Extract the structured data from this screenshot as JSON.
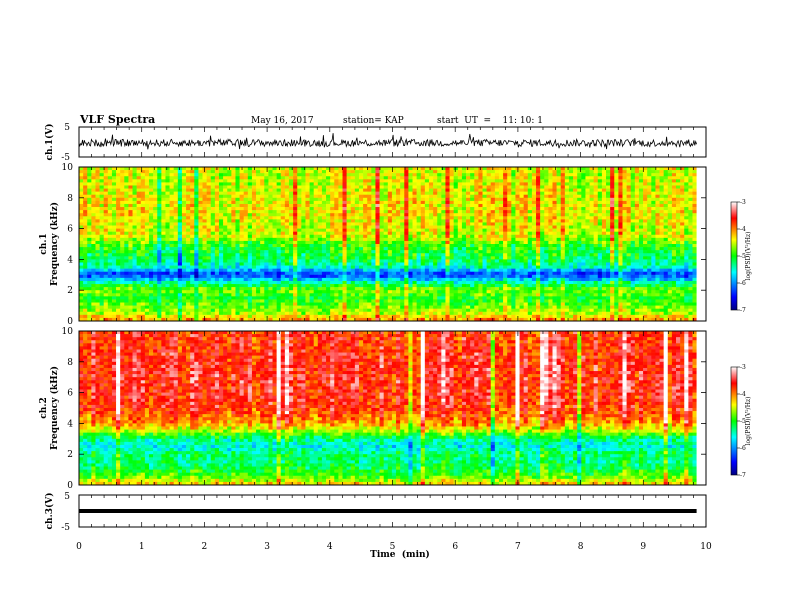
{
  "header": {
    "title": "VLF Spectra",
    "date": "May 16, 2017",
    "station": "station= KAP",
    "start": "start  UT  =    11: 10: 1"
  },
  "chart_data": [
    {
      "type": "line",
      "panel": "ch1-waveform",
      "ylabel": "ch.1(V)",
      "ylim": [
        -5,
        5
      ],
      "yticks": [
        "5",
        "-5"
      ],
      "xlim": [
        0,
        10
      ],
      "data_xlim": [
        0,
        9.85
      ],
      "description_values": {
        "baseline": -0.3,
        "amplitude": 3
      }
    },
    {
      "type": "heatmap",
      "panel": "ch1-spectrogram",
      "ylabel": "ch.1\nFrequency  (kHz)",
      "ylabel_lines": [
        "ch.1",
        "Frequency  (kHz)"
      ],
      "ylim": [
        0,
        10
      ],
      "yticks": [
        "0",
        "2",
        "4",
        "6",
        "8",
        "10"
      ],
      "xlim": [
        0,
        10
      ],
      "data_xlim": [
        0,
        9.85
      ],
      "colorbar": {
        "label": "log(PSD)(V²/Hz)",
        "ticks": [
          "-3",
          "-4",
          "-5",
          "-6",
          "-7"
        ],
        "range": [
          -7,
          -3
        ]
      },
      "band_profile": [
        {
          "f": 0.0,
          "v": -4.0
        },
        {
          "f": 0.5,
          "v": -4.6
        },
        {
          "f": 1.0,
          "v": -4.8
        },
        {
          "f": 1.5,
          "v": -5.0
        },
        {
          "f": 2.0,
          "v": -4.7
        },
        {
          "f": 2.5,
          "v": -5.4
        },
        {
          "f": 3.0,
          "v": -6.4
        },
        {
          "f": 3.5,
          "v": -5.5
        },
        {
          "f": 4.0,
          "v": -5.2
        },
        {
          "f": 4.5,
          "v": -5.1
        },
        {
          "f": 5.0,
          "v": -4.9
        },
        {
          "f": 5.5,
          "v": -4.5
        },
        {
          "f": 6.0,
          "v": -4.5
        },
        {
          "f": 7.0,
          "v": -4.4
        },
        {
          "f": 8.0,
          "v": -4.4
        },
        {
          "f": 9.0,
          "v": -4.5
        },
        {
          "f": 10.0,
          "v": -4.5
        }
      ]
    },
    {
      "type": "heatmap",
      "panel": "ch2-spectrogram",
      "ylabel": "ch.2\nFrequency  (kHz)",
      "ylabel_lines": [
        "ch.2",
        "Frequency  (kHz)"
      ],
      "ylim": [
        0,
        10
      ],
      "yticks": [
        "0",
        "2",
        "4",
        "6",
        "8",
        "10"
      ],
      "xlim": [
        0,
        10
      ],
      "data_xlim": [
        0,
        9.85
      ],
      "colorbar": {
        "label": "log(PSD)(V²/Hz)",
        "ticks": [
          "-3",
          "-4",
          "-5",
          "-6",
          "-7"
        ],
        "range": [
          -7,
          -3
        ]
      },
      "band_profile": [
        {
          "f": 0.0,
          "v": -4.2
        },
        {
          "f": 0.5,
          "v": -4.8
        },
        {
          "f": 1.0,
          "v": -5.1
        },
        {
          "f": 1.5,
          "v": -5.3
        },
        {
          "f": 2.0,
          "v": -5.2
        },
        {
          "f": 2.5,
          "v": -5.6
        },
        {
          "f": 3.0,
          "v": -5.3
        },
        {
          "f": 3.5,
          "v": -4.6
        },
        {
          "f": 4.0,
          "v": -4.1
        },
        {
          "f": 4.5,
          "v": -3.9
        },
        {
          "f": 5.0,
          "v": -3.7
        },
        {
          "f": 6.0,
          "v": -3.6
        },
        {
          "f": 7.0,
          "v": -3.6
        },
        {
          "f": 8.0,
          "v": -3.6
        },
        {
          "f": 9.0,
          "v": -3.7
        },
        {
          "f": 10.0,
          "v": -3.7
        }
      ]
    },
    {
      "type": "line",
      "panel": "ch3-waveform",
      "ylabel": "ch.3(V)",
      "ylim": [
        -5,
        5
      ],
      "yticks": [
        "5",
        "-5"
      ],
      "xlim": [
        0,
        10
      ],
      "data_xlim": [
        0,
        9.85
      ],
      "description_values": {
        "level": 0
      }
    }
  ],
  "x_axis": {
    "label": "Time  (min)",
    "ticks": [
      "0",
      "1",
      "2",
      "3",
      "4",
      "5",
      "6",
      "7",
      "8",
      "9",
      "10"
    ]
  },
  "colors": {
    "frame": "#000000",
    "colormap": [
      "#000080",
      "#0000ff",
      "#00ffff",
      "#00ff00",
      "#ffff00",
      "#ff0000",
      "#ffffff"
    ]
  }
}
